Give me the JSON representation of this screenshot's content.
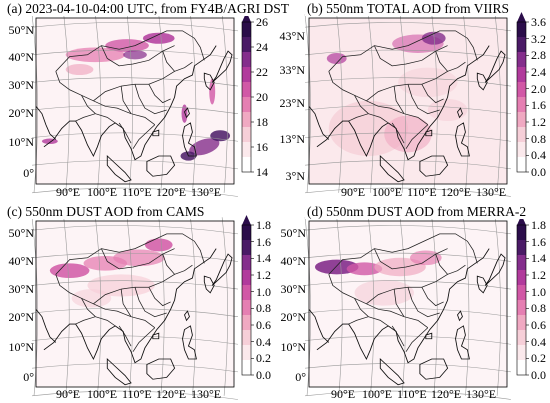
{
  "colors": {
    "scale": [
      "#ffffff",
      "#fbe9ec",
      "#f6cfd8",
      "#f0a9c2",
      "#e57fb2",
      "#d158a6",
      "#b13a9c",
      "#842e8c",
      "#4a1a66",
      "#2b0d4a"
    ],
    "coast": "#111111",
    "border": "#222222",
    "grid": "#9a9a9a"
  },
  "panels": [
    {
      "id": "a",
      "title": "(a) 2023-04-10-04:00 UTC, from FY4B/AGRI DST",
      "lat_labels": [
        "50°N",
        "40°N",
        "30°N",
        "20°N",
        "10°N",
        "0°"
      ],
      "lon_labels": [
        "90°E",
        "100°E",
        "110°E",
        "120°E",
        "130°E"
      ],
      "colorbar": {
        "ticks": [
          "26",
          "24",
          "22",
          "20",
          "18",
          "16",
          "14"
        ],
        "min": 14,
        "max": 26,
        "extend": "max"
      }
    },
    {
      "id": "b",
      "title": "(b) 550nm TOTAL AOD from VIIRS",
      "lat_labels": [
        "43°N",
        "33°N",
        "23°N",
        "13°N",
        "3°N"
      ],
      "lon_labels": [
        "90°E",
        "100°E",
        "110°E",
        "120°E",
        "130°E"
      ],
      "colorbar": {
        "ticks": [
          "3.6",
          "3.2",
          "2.8",
          "2.4",
          "2.0",
          "1.6",
          "1.2",
          "0.8",
          "0.4",
          "0.0"
        ],
        "min": 0,
        "max": 3.6,
        "extend": "max"
      }
    },
    {
      "id": "c",
      "title": "(c) 550nm DUST AOD from CAMS",
      "lat_labels": [
        "50°N",
        "40°N",
        "30°N",
        "20°N",
        "10°N",
        "0°"
      ],
      "lon_labels": [
        "90°E",
        "100°E",
        "110°E",
        "120°E",
        "130°E"
      ],
      "colorbar": {
        "ticks": [
          "1.8",
          "1.6",
          "1.4",
          "1.2",
          "1.0",
          "0.8",
          "0.6",
          "0.4",
          "0.2",
          "0.0"
        ],
        "min": 0,
        "max": 1.8,
        "extend": "max"
      }
    },
    {
      "id": "d",
      "title": "(d) 550nm DUST AOD from MERRA-2",
      "lat_labels": [
        "50°N",
        "40°N",
        "30°N",
        "20°N",
        "10°N",
        "0°"
      ],
      "lon_labels": [
        "90°E",
        "100°E",
        "110°E",
        "120°E",
        "130°E"
      ],
      "colorbar": {
        "ticks": [
          "1.8",
          "1.6",
          "1.4",
          "1.2",
          "1.0",
          "0.8",
          "0.6",
          "0.4",
          "0.2",
          "0.0"
        ],
        "min": 0,
        "max": 1.8,
        "extend": "max"
      }
    }
  ]
}
